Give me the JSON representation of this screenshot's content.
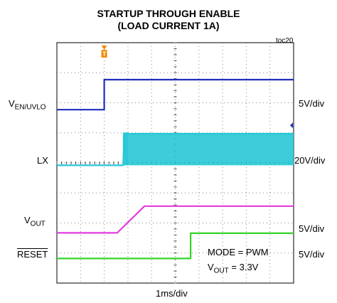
{
  "chart": {
    "title_line1": "STARTUP THROUGH ENABLE",
    "title_line2": "(LOAD CURRENT 1A)",
    "figure_id": "toc20",
    "time_div": "1ms/div",
    "trigger_marker": "T",
    "annotation_mode": "MODE = PWM",
    "annotation_vout_main": "V",
    "annotation_vout_sub": "OUT",
    "annotation_vout_value": " = 3.3V"
  },
  "channels": [
    {
      "label_main": "V",
      "label_sub": "EN/UVLO",
      "scale": "5V/div",
      "color": "#1f2dbf"
    },
    {
      "label_main": "LX",
      "label_sub": "",
      "scale": "20V/div",
      "color": "#27c6d6"
    },
    {
      "label_main": "V",
      "label_sub": "OUT",
      "scale": "5V/div",
      "color": "#e33be0"
    },
    {
      "label_main": "RESET",
      "label_sub": "",
      "scale": "5V/div",
      "color": "#35d42a"
    }
  ],
  "chart_data": {
    "type": "line",
    "x_unit": "ms",
    "xlim": [
      0,
      10
    ],
    "y_unit": "div",
    "ylim": [
      0,
      8
    ],
    "series": [
      {
        "name": "VEN/UVLO",
        "x": [
          0,
          2.0,
          2.0,
          10
        ],
        "y": [
          5.77,
          5.77,
          6.77,
          6.77
        ]
      },
      {
        "name": "LX",
        "x": [
          0,
          2.8,
          2.85,
          10
        ],
        "y": [
          3.92,
          3.92,
          4.97,
          4.97
        ],
        "envelope_low": 3.92
      },
      {
        "name": "VOUT",
        "x": [
          0,
          2.55,
          3.7,
          10
        ],
        "y": [
          1.67,
          1.67,
          2.56,
          2.56
        ]
      },
      {
        "name": "RESET",
        "x": [
          0,
          5.65,
          5.65,
          10
        ],
        "y": [
          0.82,
          0.82,
          1.66,
          1.66
        ]
      }
    ]
  }
}
